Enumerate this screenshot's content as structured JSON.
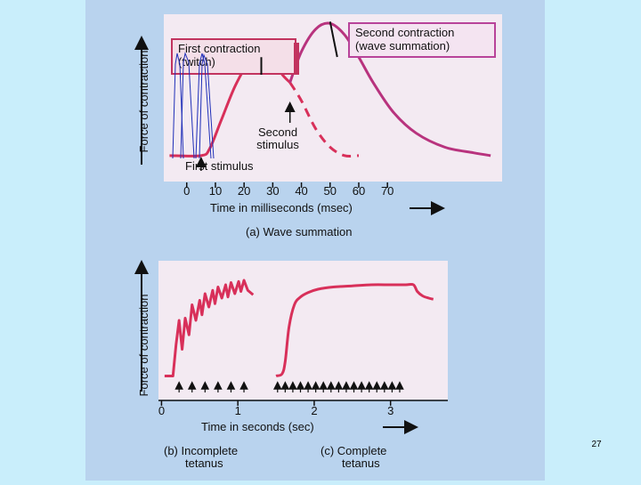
{
  "slide_number": "27",
  "colors": {
    "slide_background": "#c9eefb",
    "figure_background": "#b9d3ee",
    "plot_panel": "#f3eaf2",
    "twitch_curve": "#d8305a",
    "summation_curve": "#b8337e",
    "callout_first": "#c2345f",
    "callout_second": "#b8439a",
    "handdrawn": "#1f2fb8",
    "axis": "#111111"
  },
  "chart_data": [
    {
      "type": "line",
      "panel": "(a) Wave summation",
      "caption": "(a) Wave summation",
      "xlabel": "Time in milliseconds (msec)",
      "ylabel": "Force of contraction",
      "xlim": [
        -8,
        110
      ],
      "ylim": [
        0,
        100
      ],
      "xticks": [
        0,
        10,
        20,
        30,
        40,
        50,
        60,
        70
      ],
      "yticks": [],
      "grid": false,
      "legend": "none",
      "series": [
        {
          "style": "solid",
          "x": [
            -6,
            5,
            8,
            12,
            17,
            22,
            26,
            31,
            34,
            36
          ],
          "y": [
            2,
            2,
            7,
            27,
            52,
            69,
            72,
            65,
            58,
            54
          ]
        },
        {
          "style": "dashed",
          "x": [
            36,
            40,
            45,
            50,
            55,
            60
          ],
          "y": [
            54,
            41,
            21,
            8,
            2,
            2
          ]
        },
        {
          "style": "solid",
          "x": [
            36,
            40,
            45,
            50,
            55,
            60,
            65,
            72,
            80,
            90,
            100,
            106
          ],
          "y": [
            54,
            76,
            92,
            96,
            88,
            72,
            54,
            33,
            18,
            8,
            4,
            2
          ]
        }
      ],
      "annotations": [
        {
          "id": "first_contraction",
          "text": [
            "First contraction",
            "(twitch)"
          ]
        },
        {
          "id": "second_contraction",
          "text": [
            "Second contraction",
            "(wave summation)"
          ]
        },
        {
          "id": "second_stimulus",
          "text": [
            "Second",
            "stimulus"
          ],
          "x": 36
        },
        {
          "id": "first_stimulus",
          "text": [
            "First stimulus"
          ],
          "x": 5
        }
      ]
    },
    {
      "type": "line",
      "panel": "(b) Incomplete tetanus",
      "caption": [
        "(b) Incomplete",
        "tetanus"
      ],
      "xlabel": "Time in seconds (sec)",
      "ylabel": "Force of contraction",
      "xlim": [
        -0.04,
        3.75
      ],
      "ylim": [
        0,
        100
      ],
      "xticks": [
        0,
        1,
        2,
        3
      ],
      "grid": false,
      "legend": "none",
      "stimuli_x": [
        0.23,
        0.4,
        0.57,
        0.74,
        0.91,
        1.08
      ],
      "series": [
        {
          "style": "solid",
          "x": [
            0.04,
            0.15,
            0.19,
            0.23,
            0.27,
            0.31,
            0.36,
            0.4,
            0.45,
            0.5,
            0.53,
            0.57,
            0.62,
            0.67,
            0.7,
            0.74,
            0.79,
            0.84,
            0.87,
            0.91,
            0.96,
            1.01,
            1.04,
            1.08,
            1.13,
            1.2
          ],
          "y": [
            2,
            2,
            30,
            52,
            26,
            54,
            39,
            66,
            52,
            70,
            57,
            76,
            64,
            79,
            67,
            82,
            72,
            84,
            73,
            86,
            76,
            87,
            78,
            88,
            79,
            75
          ]
        }
      ]
    },
    {
      "type": "line",
      "panel": "(c) Complete tetanus",
      "caption": [
        "(c) Complete",
        "tetanus"
      ],
      "xlabel": "Time in seconds (sec)",
      "ylabel": "Force of contraction",
      "xlim": [
        -0.04,
        3.75
      ],
      "ylim": [
        0,
        100
      ],
      "xticks": [
        0,
        1,
        2,
        3
      ],
      "grid": false,
      "legend": "none",
      "stimuli_x": [
        1.52,
        1.62,
        1.72,
        1.82,
        1.92,
        2.02,
        2.12,
        2.22,
        2.32,
        2.42,
        2.52,
        2.62,
        2.72,
        2.82,
        2.92,
        3.02,
        3.12
      ],
      "series": [
        {
          "style": "solid",
          "x": [
            1.5,
            1.58,
            1.62,
            1.67,
            1.74,
            1.82,
            1.92,
            2.05,
            2.25,
            2.5,
            2.75,
            3.0,
            3.2,
            3.3,
            3.35,
            3.42,
            3.5,
            3.56
          ],
          "y": [
            2,
            4,
            15,
            46,
            66,
            73,
            77,
            80,
            82,
            83,
            84,
            84,
            84,
            84,
            78,
            74,
            72,
            71
          ]
        }
      ]
    }
  ]
}
